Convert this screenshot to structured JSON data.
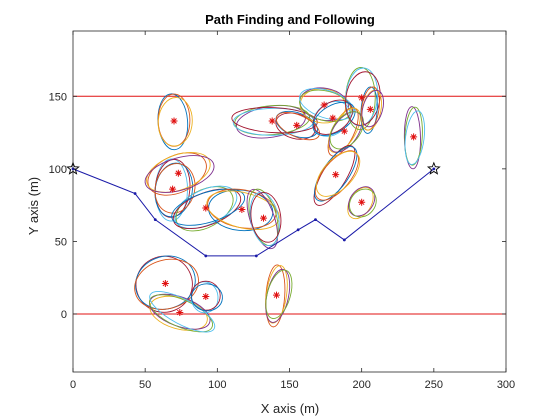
{
  "chart_data": {
    "type": "scatter",
    "title": "Path Finding and Following",
    "xlabel": "X axis (m)",
    "ylabel": "Y axis (m)",
    "xlim": [
      0,
      300
    ],
    "ylim": [
      -40,
      195
    ],
    "xticks": [
      "0",
      "50",
      "100",
      "150",
      "200",
      "250",
      "300"
    ],
    "yticks": [
      "0",
      "50",
      "100",
      "150"
    ],
    "xtick_values": [
      0,
      50,
      100,
      150,
      200,
      250,
      300
    ],
    "ytick_values": [
      0,
      50,
      100,
      150
    ],
    "grid": false,
    "boundaries": [
      0,
      150
    ],
    "boundary_color": "#e01010",
    "path_color": "#1a1aa8",
    "marker_color": "#e01010",
    "ellipse_colors": [
      "#0072bd",
      "#d95319",
      "#edb120",
      "#7e2f8e",
      "#77ac30",
      "#4dbeee",
      "#a2142f"
    ],
    "path": {
      "x": [
        0,
        43,
        57,
        92,
        127,
        156,
        168,
        188,
        250
      ],
      "y": [
        100,
        83,
        65,
        40,
        40,
        58,
        65,
        51,
        100
      ]
    },
    "start": {
      "x": 0,
      "y": 100
    },
    "goal": {
      "x": 250,
      "y": 100
    },
    "obstacles": [
      {
        "x": 70,
        "y": 133,
        "rx": 11,
        "ry": 18,
        "angle": 0
      },
      {
        "x": 138,
        "y": 133,
        "rx": 26,
        "ry": 10,
        "angle": -5
      },
      {
        "x": 155,
        "y": 130,
        "rx": 15,
        "ry": 8,
        "angle": 20
      },
      {
        "x": 174,
        "y": 144,
        "rx": 17,
        "ry": 11,
        "angle": 10
      },
      {
        "x": 180,
        "y": 135,
        "rx": 15,
        "ry": 10,
        "angle": -35
      },
      {
        "x": 188,
        "y": 126,
        "rx": 8,
        "ry": 17,
        "angle": 30
      },
      {
        "x": 200,
        "y": 149,
        "rx": 11,
        "ry": 20,
        "angle": 5
      },
      {
        "x": 206,
        "y": 141,
        "rx": 6,
        "ry": 15,
        "angle": 8
      },
      {
        "x": 236,
        "y": 122,
        "rx": 6,
        "ry": 20,
        "angle": 3
      },
      {
        "x": 182,
        "y": 96,
        "rx": 9,
        "ry": 22,
        "angle": 35
      },
      {
        "x": 200,
        "y": 77,
        "rx": 8,
        "ry": 11,
        "angle": 35
      },
      {
        "x": 69,
        "y": 86,
        "rx": 12,
        "ry": 20,
        "angle": 5
      },
      {
        "x": 73,
        "y": 97,
        "rx": 23,
        "ry": 12,
        "angle": -20
      },
      {
        "x": 92,
        "y": 73,
        "rx": 23,
        "ry": 12,
        "angle": -25
      },
      {
        "x": 117,
        "y": 72,
        "rx": 24,
        "ry": 13,
        "angle": 10
      },
      {
        "x": 132,
        "y": 66,
        "rx": 9,
        "ry": 20,
        "angle": -15
      },
      {
        "x": 64,
        "y": 21,
        "rx": 21,
        "ry": 18,
        "angle": -20
      },
      {
        "x": 74,
        "y": 1,
        "rx": 22,
        "ry": 10,
        "angle": 20
      },
      {
        "x": 92,
        "y": 12,
        "rx": 10,
        "ry": 10,
        "angle": 0
      },
      {
        "x": 141,
        "y": 13,
        "rx": 7,
        "ry": 20,
        "angle": 8
      }
    ]
  }
}
